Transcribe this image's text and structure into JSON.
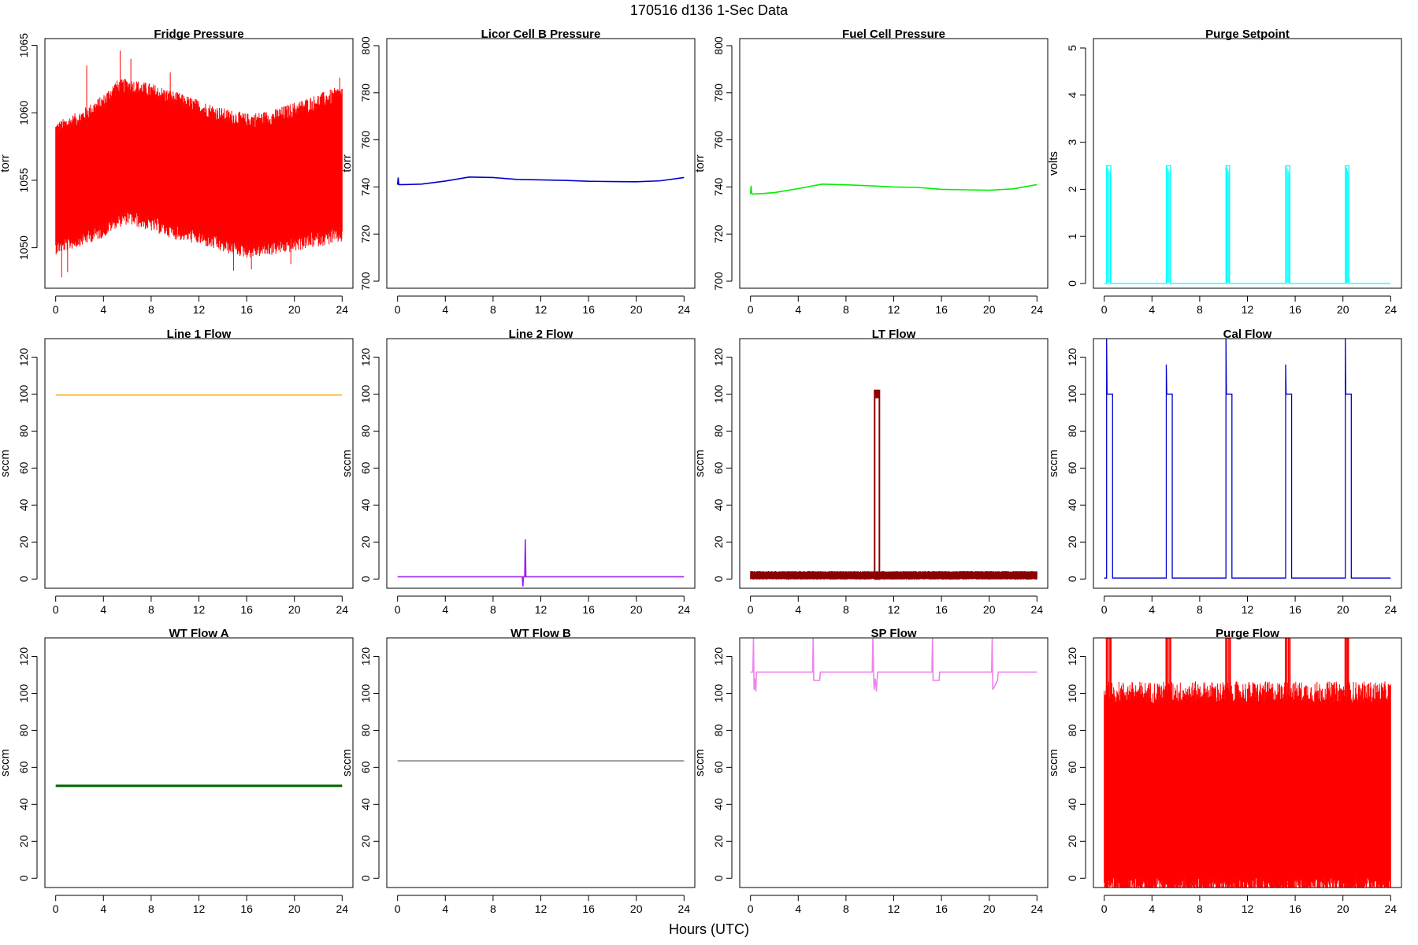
{
  "figure": {
    "title": "170516   d136   1-Sec Data",
    "xlabel": "Hours (UTC)"
  },
  "chart_data": [
    {
      "type": "line",
      "title": "Fridge Pressure",
      "ylabel": "torr",
      "color": "#ff0000",
      "xlim": [
        0,
        24
      ],
      "ylim": [
        1047,
        1065.5
      ],
      "xticks": [
        0,
        4,
        8,
        12,
        16,
        20,
        24
      ],
      "yticks": [
        1050,
        1055,
        1060,
        1065
      ],
      "band": {
        "x": [
          0,
          2,
          4,
          5,
          6,
          8,
          10,
          12,
          14,
          16,
          18,
          20,
          22,
          24
        ],
        "low": [
          1050.2,
          1050.8,
          1051.5,
          1052.2,
          1052.5,
          1052.0,
          1051.4,
          1051.0,
          1050.4,
          1050.0,
          1050.2,
          1050.5,
          1050.9,
          1051.2
        ],
        "high": [
          1058.6,
          1059.4,
          1060.6,
          1061.6,
          1061.8,
          1061.4,
          1060.8,
          1060.2,
          1059.6,
          1059.2,
          1059.4,
          1060.0,
          1060.6,
          1061.2
        ]
      },
      "spikes": [
        {
          "x": 0.5,
          "y": 1047.8
        },
        {
          "x": 1.0,
          "y": 1048.2
        },
        {
          "x": 2.6,
          "y": 1063.5
        },
        {
          "x": 5.4,
          "y": 1064.6
        },
        {
          "x": 6.3,
          "y": 1064.0
        },
        {
          "x": 14.9,
          "y": 1048.3
        },
        {
          "x": 16.4,
          "y": 1048.4
        },
        {
          "x": 19.7,
          "y": 1048.8
        },
        {
          "x": 23.8,
          "y": 1062.6
        },
        {
          "x": 9.6,
          "y": 1063.0
        }
      ]
    },
    {
      "type": "line",
      "title": "Licor Cell B Pressure",
      "ylabel": "torr",
      "color": "#0000cd",
      "xlim": [
        0,
        24
      ],
      "ylim": [
        697,
        803
      ],
      "xticks": [
        0,
        4,
        8,
        12,
        16,
        20,
        24
      ],
      "yticks": [
        700,
        720,
        740,
        760,
        780,
        800
      ],
      "series": [
        {
          "x": [
            0,
            0.05,
            0.1,
            0.15,
            0.5,
            2,
            4,
            6,
            8,
            10,
            12,
            14,
            16,
            18,
            20,
            22,
            24
          ],
          "y": [
            741,
            744,
            741,
            741,
            741,
            741.2,
            742.5,
            744.2,
            744,
            743.2,
            743,
            742.8,
            742.4,
            742.3,
            742.2,
            742.6,
            744
          ]
        }
      ]
    },
    {
      "type": "line",
      "title": "Fuel Cell Pressure",
      "ylabel": "torr",
      "color": "#00ee00",
      "xlim": [
        0,
        24
      ],
      "ylim": [
        697,
        803
      ],
      "xticks": [
        0,
        4,
        8,
        12,
        16,
        20,
        24
      ],
      "yticks": [
        700,
        720,
        740,
        760,
        780,
        800
      ],
      "series": [
        {
          "x": [
            0,
            0.05,
            0.1,
            0.15,
            1,
            2,
            4,
            6,
            8,
            10,
            12,
            14,
            16,
            18,
            20,
            22,
            24
          ],
          "y": [
            737,
            740.5,
            737.5,
            737,
            737.2,
            737.6,
            739.3,
            741.2,
            740.9,
            740.5,
            740,
            739.8,
            739,
            738.8,
            738.6,
            739.2,
            741
          ]
        }
      ]
    },
    {
      "type": "line",
      "title": "Purge Setpoint",
      "ylabel": "volts",
      "color": "#00ffff",
      "xlim": [
        0,
        24
      ],
      "ylim": [
        -0.1,
        5.2
      ],
      "xticks": [
        0,
        4,
        8,
        12,
        16,
        20,
        24
      ],
      "yticks": [
        0,
        1,
        2,
        3,
        4,
        5
      ],
      "pulses": [
        {
          "start": 0.2,
          "end": 0.55,
          "level": 2.5
        },
        {
          "start": 5.2,
          "end": 5.55,
          "level": 2.5
        },
        {
          "start": 10.2,
          "end": 10.5,
          "level": 2.5
        },
        {
          "start": 15.2,
          "end": 15.55,
          "level": 2.5
        },
        {
          "start": 20.2,
          "end": 20.5,
          "level": 2.5
        }
      ],
      "baseline": 0
    },
    {
      "type": "line",
      "title": "Line 1 Flow",
      "ylabel": "sccm",
      "color": "#ffa500",
      "xlim": [
        0,
        24
      ],
      "ylim": [
        -5,
        130
      ],
      "xticks": [
        0,
        4,
        8,
        12,
        16,
        20,
        24
      ],
      "yticks": [
        0,
        20,
        40,
        60,
        80,
        100,
        120
      ],
      "series": [
        {
          "x": [
            0,
            24
          ],
          "y": [
            99.5,
            99.5
          ]
        }
      ]
    },
    {
      "type": "line",
      "title": "Line 2 Flow",
      "ylabel": "sccm",
      "color": "#a020f0",
      "xlim": [
        0,
        24
      ],
      "ylim": [
        -5,
        130
      ],
      "xticks": [
        0,
        4,
        8,
        12,
        16,
        20,
        24
      ],
      "yticks": [
        0,
        20,
        40,
        60,
        80,
        100,
        120
      ],
      "series": [
        {
          "x": [
            0,
            10.45,
            10.5,
            10.55,
            10.6,
            10.65,
            10.7,
            10.75,
            10.8,
            24
          ],
          "y": [
            1.2,
            1.2,
            -4,
            1.2,
            1.2,
            1.2,
            21.5,
            1.2,
            1.2,
            1.2
          ]
        }
      ]
    },
    {
      "type": "line",
      "title": "LT Flow",
      "ylabel": "sccm",
      "color": "#8b0000",
      "xlim": [
        0,
        24
      ],
      "ylim": [
        -5,
        130
      ],
      "xticks": [
        0,
        4,
        8,
        12,
        16,
        20,
        24
      ],
      "yticks": [
        0,
        20,
        40,
        60,
        80,
        100,
        120
      ],
      "band": {
        "x": [
          0,
          24
        ],
        "low": [
          0,
          0
        ],
        "high": [
          4,
          4
        ]
      },
      "pulses": [
        {
          "start": 10.4,
          "end": 10.8,
          "level": 102
        }
      ]
    },
    {
      "type": "line",
      "title": "Cal Flow",
      "ylabel": "sccm",
      "color": "#0000cd",
      "xlim": [
        0,
        24
      ],
      "ylim": [
        -5,
        130
      ],
      "xticks": [
        0,
        4,
        8,
        12,
        16,
        20,
        24
      ],
      "yticks": [
        0,
        20,
        40,
        60,
        80,
        100,
        120
      ],
      "pulses": [
        {
          "start": 0.2,
          "end": 0.7,
          "level": 100,
          "peak": 130
        },
        {
          "start": 5.2,
          "end": 5.7,
          "level": 100,
          "peak": 116
        },
        {
          "start": 10.2,
          "end": 10.7,
          "level": 100,
          "peak": 130
        },
        {
          "start": 15.2,
          "end": 15.7,
          "level": 100,
          "peak": 116
        },
        {
          "start": 20.2,
          "end": 20.7,
          "level": 100,
          "peak": 130
        }
      ],
      "baseline": 0.5
    },
    {
      "type": "line",
      "title": "WT Flow A",
      "ylabel": "sccm",
      "color": "#006400",
      "xlim": [
        0,
        24
      ],
      "ylim": [
        -5,
        130
      ],
      "xticks": [
        0,
        4,
        8,
        12,
        16,
        20,
        24
      ],
      "yticks": [
        0,
        20,
        40,
        60,
        80,
        100,
        120
      ],
      "series": [
        {
          "x": [
            0,
            24
          ],
          "y": [
            50,
            50
          ]
        }
      ]
    },
    {
      "type": "line",
      "title": "WT Flow B",
      "ylabel": "sccm",
      "color": "#808080",
      "xlim": [
        0,
        24
      ],
      "ylim": [
        -5,
        130
      ],
      "xticks": [
        0,
        4,
        8,
        12,
        16,
        20,
        24
      ],
      "yticks": [
        0,
        20,
        40,
        60,
        80,
        100,
        120
      ],
      "series": [
        {
          "x": [
            0,
            24
          ],
          "y": [
            63.5,
            63.5
          ]
        }
      ]
    },
    {
      "type": "line",
      "title": "SP Flow",
      "ylabel": "sccm",
      "color": "#ee82ee",
      "xlim": [
        0,
        24
      ],
      "ylim": [
        -5,
        130
      ],
      "xticks": [
        0,
        4,
        8,
        12,
        16,
        20,
        24
      ],
      "yticks": [
        0,
        20,
        40,
        60,
        80,
        100,
        120
      ],
      "series": [
        {
          "x": [
            0,
            0.2,
            0.25,
            0.3,
            0.35,
            0.45,
            0.5,
            0.6,
            5.2,
            5.25,
            5.3,
            5.8,
            5.85,
            10.2,
            10.25,
            10.35,
            10.45,
            10.55,
            10.65,
            15.2,
            15.25,
            15.3,
            15.8,
            15.85,
            20.2,
            20.25,
            20.3,
            20.7,
            20.75,
            24
          ],
          "y": [
            111.5,
            111.5,
            130,
            102,
            108,
            101,
            111.5,
            111.5,
            111.5,
            130,
            107,
            107,
            111.5,
            111.5,
            130,
            102,
            108,
            101,
            111.5,
            111.5,
            130,
            107,
            107,
            111.5,
            111.5,
            130,
            102,
            107,
            111.5,
            111.5
          ]
        }
      ]
    },
    {
      "type": "line",
      "title": "Purge Flow",
      "ylabel": "sccm",
      "color": "#ff0000",
      "xlim": [
        0,
        24
      ],
      "ylim": [
        -5,
        130
      ],
      "xticks": [
        0,
        4,
        8,
        12,
        16,
        20,
        24
      ],
      "yticks": [
        0,
        20,
        40,
        60,
        80,
        100,
        120
      ],
      "band": {
        "x": [
          0,
          24
        ],
        "low": [
          -3,
          -3
        ],
        "high": [
          98,
          98
        ]
      },
      "pulses": [
        {
          "start": 0.2,
          "end": 0.55,
          "level": 130
        },
        {
          "start": 5.2,
          "end": 5.55,
          "level": 130
        },
        {
          "start": 10.2,
          "end": 10.55,
          "level": 130
        },
        {
          "start": 15.2,
          "end": 15.55,
          "level": 130
        },
        {
          "start": 20.2,
          "end": 20.45,
          "level": 130
        }
      ]
    }
  ]
}
